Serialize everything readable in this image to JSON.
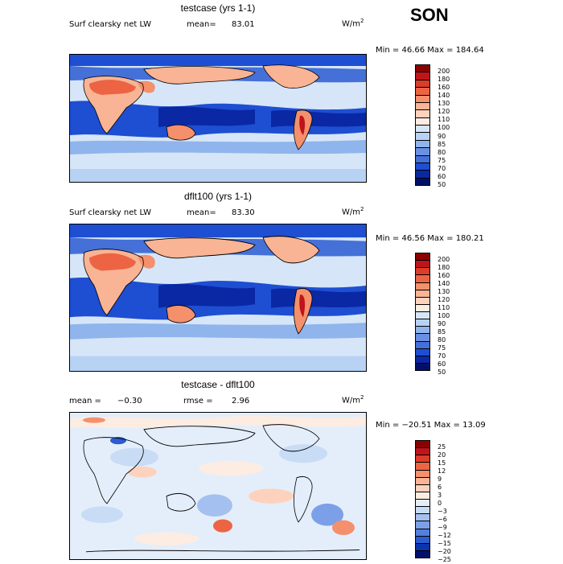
{
  "season": "SON",
  "panels": [
    {
      "title": "testcase (yrs 1-1)",
      "field": "Surf clearsky net LW",
      "stat_label": "mean=",
      "stat_value": "83.01",
      "units": "W/m",
      "units_exp": "2",
      "minmax": "Min =  46.66 Max = 184.64",
      "colorbar": [
        "200",
        "180",
        "160",
        "140",
        "130",
        "120",
        "110",
        "100",
        "90",
        "85",
        "80",
        "75",
        "70",
        "60",
        "50"
      ],
      "colors": [
        "#8c0000",
        "#c0141c",
        "#dc3c28",
        "#ec6444",
        "#f4906c",
        "#f8b494",
        "#fcd2bc",
        "#fdece2",
        "#d6e6f8",
        "#b8d2f4",
        "#90b4ec",
        "#6a90e2",
        "#4470d8",
        "#1e4ed2",
        "#0a28a4",
        "#00106a"
      ]
    },
    {
      "title": "dflt100 (yrs 1-1)",
      "field": "Surf clearsky net LW",
      "stat_label": "mean=",
      "stat_value": "83.30",
      "units": "W/m",
      "units_exp": "2",
      "minmax": "Min =  46.56 Max = 180.21",
      "colorbar": [
        "200",
        "180",
        "160",
        "140",
        "130",
        "120",
        "110",
        "100",
        "90",
        "85",
        "80",
        "75",
        "70",
        "60",
        "50"
      ],
      "colors": [
        "#8c0000",
        "#c0141c",
        "#dc3c28",
        "#ec6444",
        "#f4906c",
        "#f8b494",
        "#fcd2bc",
        "#fdece2",
        "#d6e6f8",
        "#b8d2f4",
        "#90b4ec",
        "#6a90e2",
        "#4470d8",
        "#1e4ed2",
        "#0a28a4",
        "#00106a"
      ]
    },
    {
      "title": "testcase - dflt100",
      "stat_label": "mean =",
      "stat_value": "−0.30",
      "rmse_label": "rmse =",
      "rmse_value": "2.96",
      "units": "W/m",
      "units_exp": "2",
      "minmax": "Min = −20.51 Max =  13.09",
      "colorbar": [
        "25",
        "20",
        "15",
        "12",
        "9",
        "6",
        "3",
        "0",
        "−3",
        "−6",
        "−9",
        "−12",
        "−15",
        "−20",
        "−25"
      ],
      "colors": [
        "#8c0000",
        "#c0141c",
        "#dc3c28",
        "#ec6444",
        "#f4906c",
        "#f8b494",
        "#fcd2bc",
        "#fdece2",
        "#e4eefa",
        "#c8dcf6",
        "#a4c0f0",
        "#7ca0e8",
        "#5480de",
        "#2c5cd2",
        "#0c34b0",
        "#00106a"
      ]
    }
  ]
}
